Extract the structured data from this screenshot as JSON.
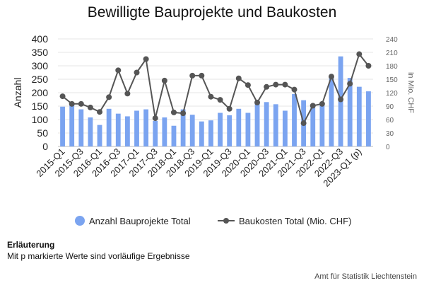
{
  "chart_data": {
    "type": "bar",
    "title": "Bewilligte Bauprojekte und Baukosten",
    "categories": [
      "2015-Q1",
      "2015-Q2",
      "2015-Q3",
      "2015-Q4",
      "2016-Q1",
      "2016-Q2",
      "2016-Q3",
      "2016-Q4",
      "2017-Q1",
      "2017-Q2",
      "2017-Q3",
      "2017-Q4",
      "2018-Q1",
      "2018-Q2",
      "2018-Q3",
      "2018-Q4",
      "2019-Q1",
      "2019-Q2",
      "2019-Q3",
      "2019-Q4",
      "2020-Q1",
      "2020-Q2",
      "2020-Q3",
      "2020-Q4",
      "2021-Q1",
      "2021-Q2",
      "2021-Q3",
      "2021-Q4",
      "2022-Q1",
      "2022-Q2",
      "2022-Q3",
      "2022-Q4",
      "2023-Q1 (p)",
      "2023-Q2 (p)"
    ],
    "x_tick_labels": [
      "2015-Q1",
      "2015-Q3",
      "2016-Q1",
      "2016-Q3",
      "2017-Q1",
      "2017-Q3",
      "2018-Q1",
      "2018-Q3",
      "2019-Q1",
      "2019-Q3",
      "2020-Q1",
      "2020-Q3",
      "2021-Q1",
      "2021-Q3",
      "2022-Q1",
      "2022-Q3",
      "2023-Q1 (p)"
    ],
    "series": [
      {
        "name": "Anzahl Bauprojekte Total",
        "type": "bar",
        "axis": "left",
        "color": "#7ba4f0",
        "values": [
          148,
          155,
          138,
          108,
          80,
          140,
          122,
          112,
          133,
          138,
          95,
          108,
          77,
          138,
          118,
          93,
          97,
          125,
          116,
          140,
          125,
          160,
          165,
          157,
          133,
          195,
          172,
          145,
          152,
          255,
          335,
          255,
          222,
          205
        ]
      },
      {
        "name": "Baukosten Total (Mio. CHF)",
        "type": "line",
        "axis": "right",
        "color": "#555555",
        "values": [
          112,
          95,
          95,
          87,
          77,
          110,
          170,
          118,
          165,
          195,
          63,
          147,
          76,
          74,
          158,
          158,
          111,
          104,
          84,
          152,
          137,
          98,
          133,
          138,
          138,
          127,
          52,
          91,
          95,
          156,
          105,
          140,
          206,
          180
        ]
      }
    ],
    "ylabel": "Anzahl",
    "y2label": "in Mio. CHF",
    "ylim": [
      0,
      400
    ],
    "y2lim": [
      0,
      240
    ],
    "y_ticks": [
      0,
      50,
      100,
      150,
      200,
      250,
      300,
      350,
      400
    ],
    "y2_ticks": [
      0,
      30,
      60,
      90,
      120,
      150,
      180,
      210,
      240
    ],
    "grid": true,
    "legend_position": "bottom"
  },
  "note": {
    "title": "Erläuterung",
    "text": "Mit p markierte Werte sind vorläufige Ergebnisse"
  },
  "source": "Amt für Statistik Liechtenstein"
}
